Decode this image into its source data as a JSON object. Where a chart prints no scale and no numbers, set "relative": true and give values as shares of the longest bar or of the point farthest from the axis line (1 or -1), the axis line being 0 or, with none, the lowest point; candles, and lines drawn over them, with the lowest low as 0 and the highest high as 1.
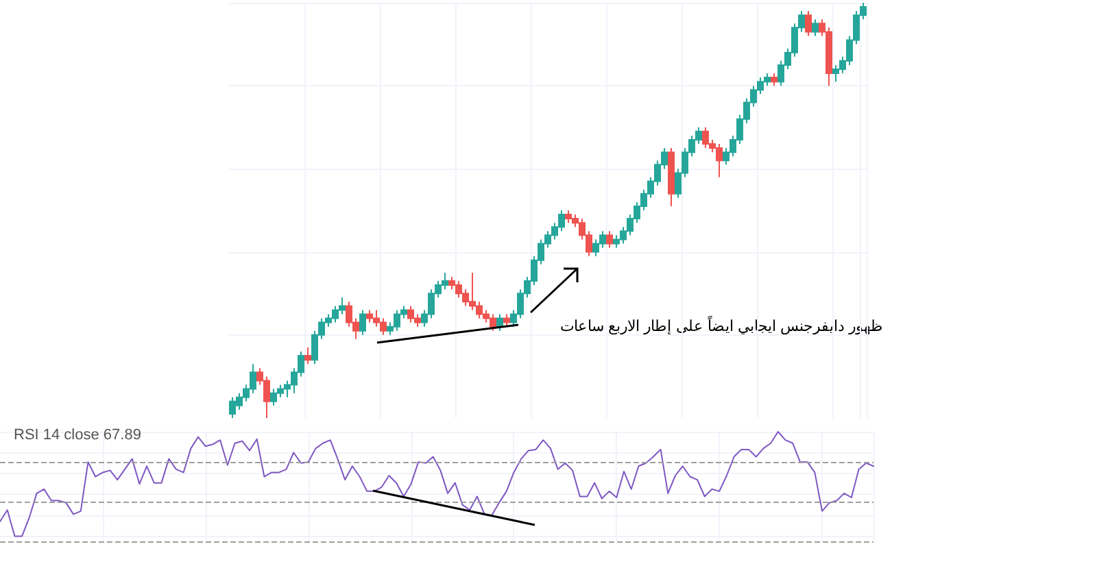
{
  "chart_data": [
    {
      "type": "candlestick",
      "relative": true,
      "grid": true,
      "tick_labels": false,
      "annotations": [
        "ظهور دايفرجنس ايجابي ايضاً على إطار الاربع ساعات"
      ],
      "categories": [
        null,
        null,
        null,
        null,
        null,
        null,
        null,
        null,
        null,
        null,
        null,
        null,
        null,
        null,
        null,
        null,
        null,
        null,
        null,
        null,
        null,
        null,
        null,
        null,
        null,
        null,
        null,
        null,
        null,
        null,
        null,
        null,
        null,
        null,
        null,
        null,
        null,
        null,
        null,
        null,
        null,
        null,
        null,
        null,
        null,
        null,
        null,
        null,
        null,
        null,
        null,
        null,
        null,
        null,
        null,
        null,
        null,
        null,
        null,
        null,
        null,
        null,
        null,
        null,
        null,
        null,
        null,
        null,
        null,
        null,
        null,
        null,
        null,
        null,
        null,
        null,
        null,
        null,
        null,
        null,
        null,
        null,
        null,
        null,
        null,
        null,
        null,
        null,
        null,
        null,
        null,
        null,
        null
      ],
      "ohlc": [
        [
          0.01,
          0.05,
          0.0,
          0.04
        ],
        [
          0.03,
          0.06,
          0.02,
          0.05
        ],
        [
          0.05,
          0.08,
          0.04,
          0.07
        ],
        [
          0.07,
          0.13,
          0.06,
          0.11
        ],
        [
          0.11,
          0.12,
          0.08,
          0.09
        ],
        [
          0.09,
          0.1,
          0.0,
          0.04
        ],
        [
          0.04,
          0.07,
          0.03,
          0.06
        ],
        [
          0.06,
          0.08,
          0.05,
          0.07
        ],
        [
          0.07,
          0.09,
          0.05,
          0.08
        ],
        [
          0.08,
          0.12,
          0.06,
          0.11
        ],
        [
          0.11,
          0.16,
          0.1,
          0.15
        ],
        [
          0.15,
          0.17,
          0.13,
          0.14
        ],
        [
          0.14,
          0.21,
          0.13,
          0.2
        ],
        [
          0.2,
          0.24,
          0.19,
          0.23
        ],
        [
          0.23,
          0.25,
          0.22,
          0.24
        ],
        [
          0.24,
          0.27,
          0.23,
          0.26
        ],
        [
          0.26,
          0.29,
          0.25,
          0.27
        ],
        [
          0.27,
          0.28,
          0.22,
          0.23
        ],
        [
          0.23,
          0.24,
          0.19,
          0.21
        ],
        [
          0.21,
          0.26,
          0.2,
          0.25
        ],
        [
          0.25,
          0.26,
          0.23,
          0.24
        ],
        [
          0.24,
          0.26,
          0.22,
          0.23
        ],
        [
          0.23,
          0.24,
          0.2,
          0.21
        ],
        [
          0.21,
          0.23,
          0.2,
          0.22
        ],
        [
          0.22,
          0.26,
          0.21,
          0.25
        ],
        [
          0.25,
          0.27,
          0.24,
          0.26
        ],
        [
          0.26,
          0.27,
          0.23,
          0.24
        ],
        [
          0.24,
          0.25,
          0.22,
          0.23
        ],
        [
          0.23,
          0.26,
          0.22,
          0.25
        ],
        [
          0.25,
          0.31,
          0.24,
          0.3
        ],
        [
          0.3,
          0.33,
          0.29,
          0.32
        ],
        [
          0.32,
          0.35,
          0.31,
          0.33
        ],
        [
          0.33,
          0.34,
          0.31,
          0.32
        ],
        [
          0.32,
          0.33,
          0.29,
          0.3
        ],
        [
          0.3,
          0.31,
          0.27,
          0.28
        ],
        [
          0.28,
          0.35,
          0.26,
          0.27
        ],
        [
          0.27,
          0.28,
          0.24,
          0.25
        ],
        [
          0.25,
          0.26,
          0.23,
          0.24
        ],
        [
          0.24,
          0.25,
          0.21,
          0.22
        ],
        [
          0.22,
          0.25,
          0.21,
          0.24
        ],
        [
          0.24,
          0.25,
          0.22,
          0.23
        ],
        [
          0.23,
          0.26,
          0.22,
          0.25
        ],
        [
          0.25,
          0.31,
          0.24,
          0.3
        ],
        [
          0.3,
          0.34,
          0.29,
          0.33
        ],
        [
          0.33,
          0.39,
          0.32,
          0.38
        ],
        [
          0.38,
          0.43,
          0.37,
          0.42
        ],
        [
          0.42,
          0.45,
          0.41,
          0.44
        ],
        [
          0.44,
          0.47,
          0.43,
          0.46
        ],
        [
          0.46,
          0.5,
          0.45,
          0.49
        ],
        [
          0.49,
          0.5,
          0.47,
          0.48
        ],
        [
          0.48,
          0.49,
          0.46,
          0.47
        ],
        [
          0.47,
          0.48,
          0.43,
          0.44
        ],
        [
          0.44,
          0.45,
          0.39,
          0.4
        ],
        [
          0.4,
          0.43,
          0.39,
          0.42
        ],
        [
          0.42,
          0.45,
          0.41,
          0.44
        ],
        [
          0.44,
          0.45,
          0.41,
          0.42
        ],
        [
          0.42,
          0.44,
          0.41,
          0.43
        ],
        [
          0.43,
          0.46,
          0.42,
          0.45
        ],
        [
          0.45,
          0.49,
          0.44,
          0.48
        ],
        [
          0.48,
          0.52,
          0.47,
          0.51
        ],
        [
          0.51,
          0.55,
          0.5,
          0.54
        ],
        [
          0.54,
          0.58,
          0.53,
          0.57
        ],
        [
          0.57,
          0.62,
          0.56,
          0.61
        ],
        [
          0.61,
          0.65,
          0.6,
          0.64
        ],
        [
          0.64,
          0.65,
          0.51,
          0.54
        ],
        [
          0.54,
          0.6,
          0.53,
          0.59
        ],
        [
          0.59,
          0.65,
          0.58,
          0.64
        ],
        [
          0.64,
          0.68,
          0.63,
          0.67
        ],
        [
          0.67,
          0.7,
          0.66,
          0.69
        ],
        [
          0.69,
          0.7,
          0.65,
          0.66
        ],
        [
          0.66,
          0.67,
          0.64,
          0.65
        ],
        [
          0.65,
          0.66,
          0.58,
          0.62
        ],
        [
          0.62,
          0.65,
          0.61,
          0.64
        ],
        [
          0.64,
          0.68,
          0.63,
          0.67
        ],
        [
          0.67,
          0.73,
          0.66,
          0.72
        ],
        [
          0.72,
          0.77,
          0.71,
          0.76
        ],
        [
          0.76,
          0.8,
          0.75,
          0.79
        ],
        [
          0.79,
          0.82,
          0.78,
          0.81
        ],
        [
          0.81,
          0.83,
          0.8,
          0.82
        ],
        [
          0.82,
          0.83,
          0.8,
          0.81
        ],
        [
          0.81,
          0.86,
          0.8,
          0.85
        ],
        [
          0.85,
          0.89,
          0.84,
          0.88
        ],
        [
          0.88,
          0.95,
          0.87,
          0.94
        ],
        [
          0.94,
          0.98,
          0.93,
          0.97
        ],
        [
          0.97,
          0.98,
          0.92,
          0.93
        ],
        [
          0.93,
          0.96,
          0.92,
          0.95
        ],
        [
          0.95,
          0.96,
          0.92,
          0.93
        ],
        [
          0.93,
          0.94,
          0.8,
          0.83
        ],
        [
          0.83,
          0.85,
          0.81,
          0.84
        ],
        [
          0.84,
          0.87,
          0.83,
          0.86
        ],
        [
          0.86,
          0.92,
          0.85,
          0.91
        ],
        [
          0.91,
          0.98,
          0.9,
          0.97
        ],
        [
          0.97,
          1.0,
          0.96,
          0.99
        ]
      ]
    },
    {
      "type": "line",
      "relative": true,
      "grid": true,
      "tick_labels": false,
      "title": "RSI 14 close 67.89",
      "categories": [
        null,
        null,
        null,
        null,
        null,
        null,
        null,
        null,
        null,
        null,
        null,
        null,
        null,
        null,
        null,
        null,
        null,
        null,
        null,
        null,
        null,
        null,
        null,
        null,
        null,
        null,
        null,
        null,
        null,
        null,
        null,
        null,
        null,
        null,
        null,
        null,
        null,
        null,
        null,
        null,
        null,
        null,
        null,
        null,
        null,
        null,
        null,
        null,
        null,
        null,
        null,
        null,
        null,
        null,
        null,
        null,
        null,
        null,
        null,
        null,
        null,
        null,
        null,
        null,
        null,
        null,
        null,
        null,
        null,
        null,
        null,
        null,
        null,
        null,
        null,
        null,
        null,
        null,
        null,
        null,
        null,
        null,
        null,
        null,
        null,
        null,
        null,
        null,
        null,
        null,
        null,
        null,
        null,
        null,
        null,
        null,
        null,
        null,
        null,
        null,
        null,
        null,
        null,
        null,
        null,
        null,
        null,
        null,
        null,
        null,
        null,
        null,
        null,
        null,
        null,
        null,
        null,
        null,
        null,
        null
      ],
      "series": [
        {
          "color": "#7e57c2",
          "values": [
            0.14,
            0.25,
            0,
            0,
            0.18,
            0.41,
            0.45,
            0.34,
            0.34,
            0.32,
            0.21,
            0.24,
            0.71,
            0.57,
            0.61,
            0.63,
            0.54,
            0.64,
            0.74,
            0.5,
            0.67,
            0.51,
            0.51,
            0.74,
            0.64,
            0.61,
            0.84,
            0.95,
            0.86,
            0.88,
            0.92,
            0.68,
            0.89,
            0.91,
            0.82,
            0.93,
            0.57,
            0.61,
            0.61,
            0.64,
            0.8,
            0.7,
            0.71,
            0.84,
            0.89,
            0.92,
            0.74,
            0.54,
            0.67,
            0.57,
            0.43,
            0.43,
            0.47,
            0.58,
            0.51,
            0.38,
            0.5,
            0.71,
            0.7,
            0.76,
            0.63,
            0.41,
            0.51,
            0.3,
            0.25,
            0.38,
            0.21,
            0.2,
            0.32,
            0.43,
            0.61,
            0.74,
            0.82,
            0.83,
            0.92,
            0.84,
            0.64,
            0.7,
            0.63,
            0.38,
            0.38,
            0.51,
            0.36,
            0.43,
            0.37,
            0.62,
            0.45,
            0.67,
            0.7,
            0.76,
            0.83,
            0.41,
            0.58,
            0.67,
            0.57,
            0.54,
            0.38,
            0.45,
            0.43,
            0.58,
            0.76,
            0.83,
            0.83,
            0.76,
            0.84,
            0.89,
            1.0,
            0.92,
            0.89,
            0.71,
            0.71,
            0.61,
            0.24,
            0.32,
            0.34,
            0.41,
            0.37,
            0.64,
            0.7,
            0.67
          ]
        }
      ],
      "ref_lines": [
        {
          "axis": "y",
          "value": 0.71,
          "color": "#9e9e9e",
          "line_style": "dashed"
        },
        {
          "axis": "y",
          "value": 0.33,
          "color": "#9e9e9e",
          "line_style": "dashed"
        },
        {
          "axis": "y",
          "value": -0.05,
          "color": "#9e9e9e",
          "line_style": "dashed"
        }
      ]
    }
  ]
}
